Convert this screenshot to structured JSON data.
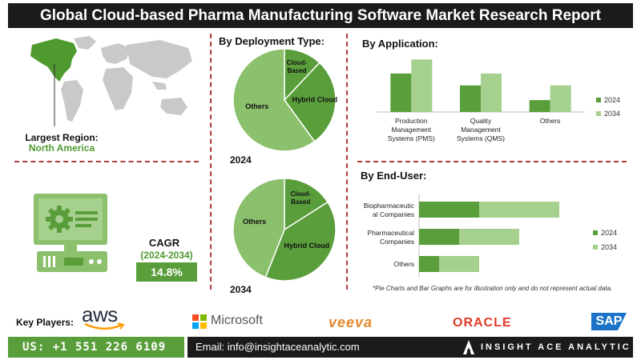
{
  "title": "Global Cloud-based Pharma Manufacturing Software Market Research Report",
  "region": {
    "label": "Largest Region:",
    "value": "North America"
  },
  "cagr": {
    "label": "CAGR",
    "period": "(2024-2034)",
    "value": "14.8%"
  },
  "colors": {
    "dark_green": "#5a9e3c",
    "light_green": "#a6d08e",
    "mid_green": "#8bc06c",
    "divider_red": "#b53a3a"
  },
  "key_players": {
    "label": "Key Players:",
    "logos": [
      "aws",
      "Microsoft",
      "veeva",
      "ORACLE",
      "SAP"
    ]
  },
  "footer": {
    "phone": "US: +1 551 226 6109",
    "email": "Email: info@insightaceanalytic.com",
    "brand": "INSIGHT ACE ANALYTIC"
  },
  "note": "*Pie Charts and Bar Graphs are for illustration only and do not represent actual data.",
  "icons": [
    "world-map-icon",
    "computer-gear-icon",
    "microsoft-logo-icon",
    "insight-ace-logo-icon"
  ],
  "chart_data": [
    {
      "type": "pie",
      "title": "By Deployment Type:",
      "year": "2024",
      "labels": [
        "Cloud-Based",
        "Hybrid Cloud",
        "Others"
      ],
      "values": [
        12,
        28,
        60
      ],
      "colors": [
        "#5a9e3c",
        "#5a9e3c",
        "#8bc06c"
      ]
    },
    {
      "type": "pie",
      "year": "2034",
      "labels": [
        "Cloud-Based",
        "Hybrid Cloud",
        "Others"
      ],
      "values": [
        16,
        40,
        44
      ],
      "colors": [
        "#5a9e3c",
        "#5a9e3c",
        "#8bc06c"
      ]
    },
    {
      "type": "bar",
      "title": "By Application:",
      "categories": [
        "Production Management Systems (PMS)",
        "Quality Management Systems (QMS)",
        "Others"
      ],
      "category_lines": [
        [
          "Production",
          "Management",
          "Systems (PMS)"
        ],
        [
          "Quality",
          "Management",
          "Systems (QMS)"
        ],
        [
          "Others"
        ]
      ],
      "series": [
        {
          "name": "2024",
          "values": [
            55,
            38,
            17
          ],
          "color": "#5a9e3c"
        },
        {
          "name": "2034",
          "values": [
            75,
            55,
            38
          ],
          "color": "#a6d08e"
        }
      ],
      "ylim": [
        0,
        80
      ],
      "legend": "right"
    },
    {
      "type": "bar",
      "orientation": "horizontal",
      "stacked": true,
      "title": "By End-User:",
      "categories": [
        "Biopharmaceutical Companies",
        "Pharmaceutical Companies",
        "Others"
      ],
      "category_lines": [
        [
          "Biopharmaceutic",
          "al Companies"
        ],
        [
          "Pharmaceutical",
          "Companies"
        ],
        [
          "Others"
        ]
      ],
      "series": [
        {
          "name": "2024",
          "values": [
            30,
            20,
            10
          ],
          "color": "#5a9e3c"
        },
        {
          "name": "2034",
          "values": [
            40,
            30,
            20
          ],
          "color": "#a6d08e"
        }
      ],
      "xlim": [
        0,
        80
      ],
      "legend": "right"
    }
  ]
}
